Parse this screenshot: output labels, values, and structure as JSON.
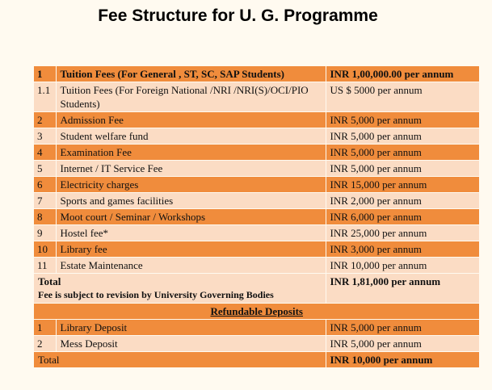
{
  "title": "Fee Structure for U. G. Programme",
  "fees": [
    {
      "no": "1",
      "desc": "Tuition Fees (For General , ST, SC, SAP Students)",
      "value": "INR 1,00,000.00 per annum",
      "bold": true,
      "shade": "dark"
    },
    {
      "no": "1.1",
      "desc": "Tuition Fees (For Foreign National /NRI /NRI(S)/OCI/PIO Students)",
      "value": "US $ 5000 per annum",
      "bold": false,
      "shade": "light"
    },
    {
      "no": "2",
      "desc": "Admission Fee",
      "value": "INR 5,000 per annum",
      "bold": false,
      "shade": "dark"
    },
    {
      "no": "3",
      "desc": "Student welfare fund",
      "value": "INR 5,000 per annum",
      "bold": false,
      "shade": "light"
    },
    {
      "no": "4",
      "desc": "Examination Fee",
      "value": "INR 5,000 per annum",
      "bold": false,
      "shade": "dark"
    },
    {
      "no": "5",
      "desc": "Internet / IT Service Fee",
      "value": "INR 5,000 per annum",
      "bold": false,
      "shade": "light"
    },
    {
      "no": "6",
      "desc": "Electricity charges",
      "value": "INR 15,000 per annum",
      "bold": false,
      "shade": "dark"
    },
    {
      "no": "7",
      "desc": "Sports and games facilities",
      "value": "INR 2,000 per annum",
      "bold": false,
      "shade": "light"
    },
    {
      "no": "8",
      "desc": "Moot court / Seminar / Workshops",
      "value": "INR 6,000 per annum",
      "bold": false,
      "shade": "dark"
    },
    {
      "no": "9",
      "desc": "Hostel fee*",
      "value": "INR 25,000 per annum",
      "bold": false,
      "shade": "light"
    },
    {
      "no": "10",
      "desc": "Library fee",
      "value": "INR 3,000 per annum",
      "bold": false,
      "shade": "dark"
    },
    {
      "no": "11",
      "desc": "Estate Maintenance",
      "value": "INR 10,000 per annum",
      "bold": false,
      "shade": "light"
    }
  ],
  "total": {
    "label": "Total",
    "note": "Fee is subject to revision by University Governing Bodies",
    "value": "INR 1,81,000 per annum"
  },
  "refundable_heading": "Refundable Deposits",
  "deposits": [
    {
      "no": "1",
      "desc": "Library Deposit",
      "value": "INR 5,000 per annum",
      "shade": "dark"
    },
    {
      "no": "2",
      "desc": "Mess Deposit",
      "value": "INR 5,000 per annum",
      "shade": "light"
    }
  ],
  "deposit_total": {
    "label": "Total",
    "value": "INR 10,000 per annum"
  },
  "colors": {
    "dark": "#f08c3c",
    "light": "#fbdcc4"
  }
}
